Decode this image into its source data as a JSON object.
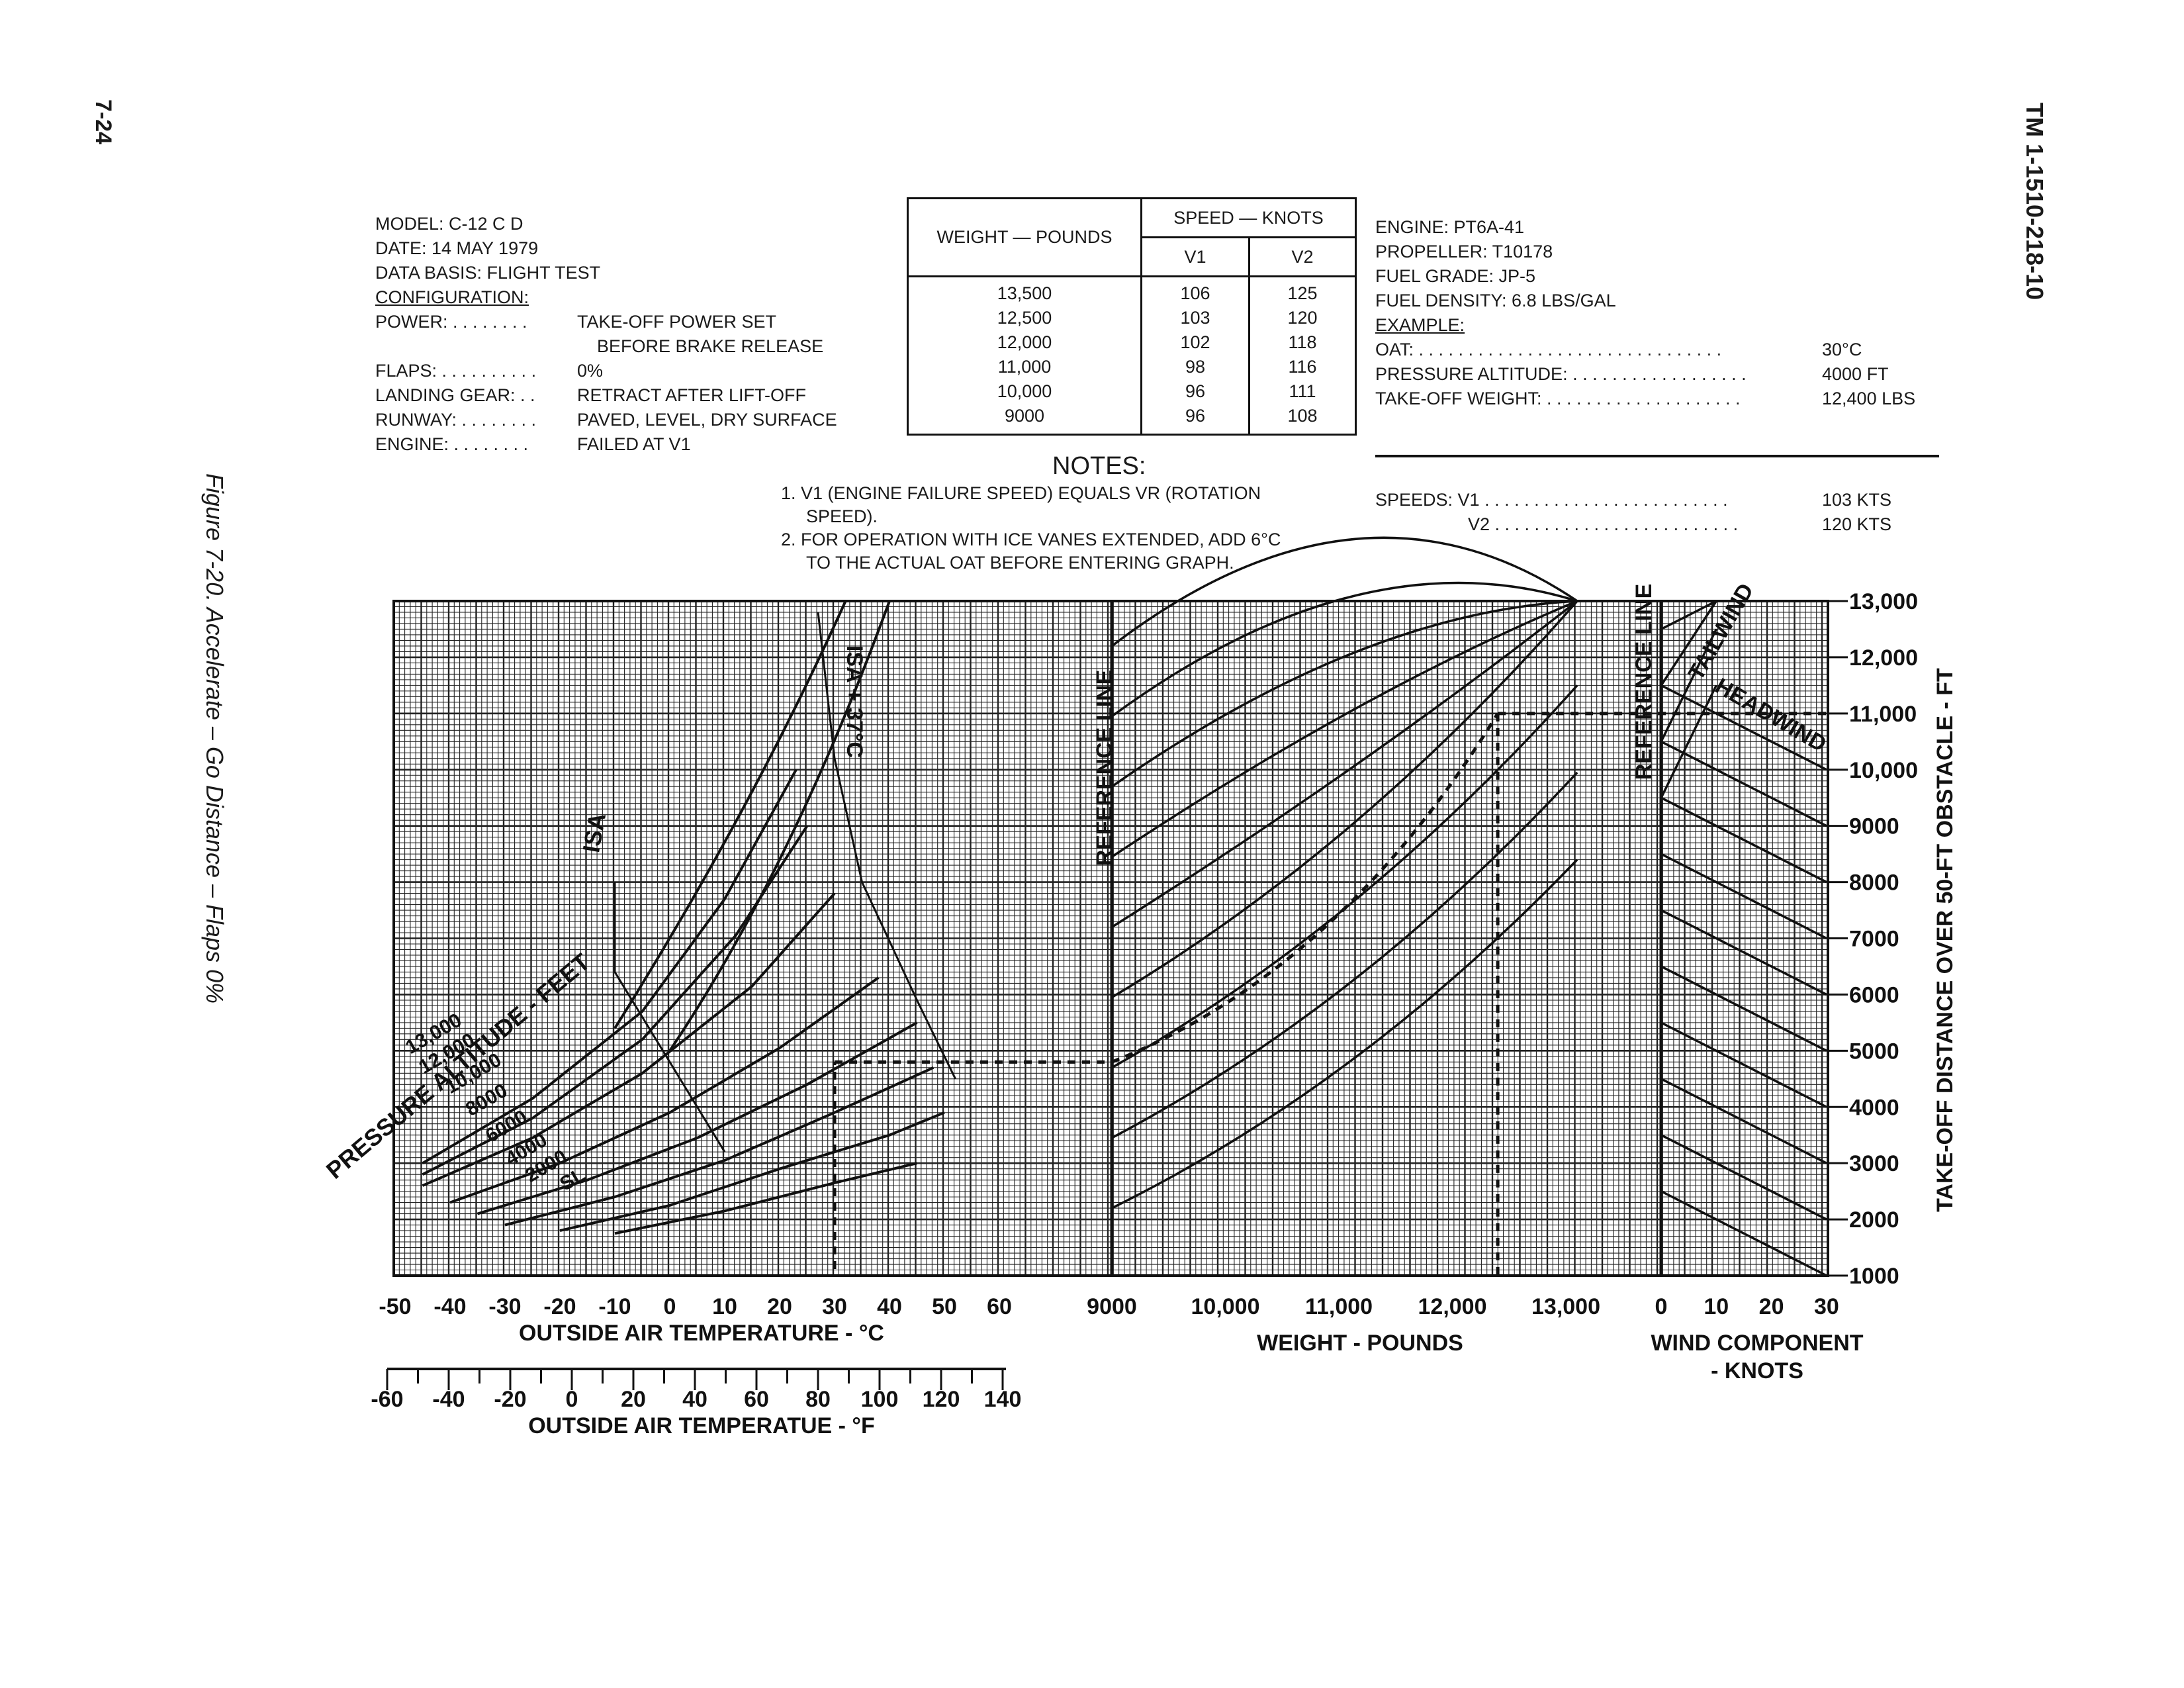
{
  "page": {
    "page_number": "7-24",
    "doc_id": "TM 1-1510-218-10",
    "figure_caption": "Figure 7-20. Accelerate – Go Distance – Flaps 0%"
  },
  "header_left": {
    "model": "MODEL: C-12 C D",
    "date": "DATE: 14 MAY 1979",
    "data_basis": "DATA BASIS: FLIGHT TEST",
    "configuration": "CONFIGURATION:",
    "rows": [
      {
        "key": "POWER: . . . . . . . .",
        "value": "TAKE-OFF POWER SET"
      },
      {
        "key": "",
        "value": "BEFORE BRAKE RELEASE"
      },
      {
        "key": "FLAPS: . . . . . . . . . .",
        "value": "0% "
      },
      {
        "key": "LANDING GEAR: . .",
        "value": "RETRACT AFTER LIFT-OFF"
      },
      {
        "key": "RUNWAY: . . . . . . . .",
        "value": "PAVED, LEVEL, DRY SURFACE"
      },
      {
        "key": "ENGINE: . . . . . . . .",
        "value": "FAILED AT V1"
      }
    ]
  },
  "speed_table": {
    "group_header": "SPEED — KNOTS",
    "weight_header": "WEIGHT — POUNDS",
    "v1_header": "V1",
    "v2_header": "V2",
    "rows": [
      {
        "weight": "13,500",
        "v1": "106",
        "v2": "125"
      },
      {
        "weight": "12,500",
        "v1": "103",
        "v2": "120"
      },
      {
        "weight": "12,000",
        "v1": "102",
        "v2": "118"
      },
      {
        "weight": "11,000",
        "v1": "98",
        "v2": "116"
      },
      {
        "weight": "10,000",
        "v1": "96",
        "v2": "111"
      },
      {
        "weight": "9000",
        "v1": "96",
        "v2": "108"
      }
    ]
  },
  "notes": {
    "title": "NOTES:",
    "note1a": "1. V1  (ENGINE FAILURE SPEED) EQUALS VR (ROTATION",
    "note1b": "SPEED).",
    "note2a": "2. FOR OPERATION WITH ICE VANES EXTENDED, ADD 6°C",
    "note2b": "TO THE ACTUAL OAT BEFORE ENTERING GRAPH."
  },
  "header_right": {
    "engine": "ENGINE: PT6A-41",
    "propeller": "PROPELLER: T10178",
    "fuel_grade": "FUEL GRADE: JP-5",
    "fuel_density": "FUEL DENSITY: 6.8 LBS/GAL",
    "example_title": "EXAMPLE:",
    "oat_label": "OAT: . . . . . . . . . . . . . . . . . . . . . . . . . . . . . . .",
    "oat_value": "30°C",
    "pa_label": "PRESSURE ALTITUDE: . . . . . . . . . . . . . . . . . .",
    "pa_value": "4000 FT",
    "tow_label": "TAKE-OFF WEIGHT: . . . . . . . . . . . . . . . . . . . .",
    "tow_value": "12,400 LBS",
    "speeds_label": "SPEEDS: V1 . . . . . . . . . . . . . . . . . . . . . . . . .",
    "v1_value": "103 KTS",
    "v2_label": "V2 . . . . . . . . . . . . . . . . . . . . . . . . .",
    "v2_value": "120 KTS"
  },
  "chart_data": {
    "type": "line",
    "title": "",
    "panels": {
      "temperature": {
        "x_ticks_c": [
          "-50",
          "-40",
          "-30",
          "-20",
          "-10",
          "0",
          "10",
          "20",
          "30",
          "40",
          "50",
          "60"
        ],
        "x_ticks_f": [
          "-60",
          "-40",
          "-20",
          "0",
          "20",
          "40",
          "60",
          "80",
          "100",
          "120",
          "140"
        ],
        "xlabel_c": "OUTSIDE AIR TEMPERATURE - °C",
        "xlabel_f": "OUTSIDE AIR TEMPERATUE - °F",
        "family_label": "PRESSURE ALTITUDE - FEET",
        "altitude_labels": [
          "13,000",
          "12,000",
          "10,000",
          "8000",
          "6000",
          "4000",
          "2000",
          "SL"
        ],
        "isa_label": "ISA",
        "isa37_label": "ISA + 37°C"
      },
      "weight": {
        "x_ticks": [
          "9000",
          "10,000",
          "11,000",
          "12,000",
          "13,000"
        ],
        "xlabel": "WEIGHT - POUNDS",
        "reference_label": "REFERENCE LINE"
      },
      "wind": {
        "x_ticks": [
          "0",
          "10",
          "20",
          "30"
        ],
        "xlabel_line1": "WIND COMPONENT",
        "xlabel_line2": "- KNOTS",
        "reference_label": "REFERENCE LINE",
        "tailwind_label": "TAILWIND",
        "headwind_label": "HEADWIND"
      }
    },
    "y_axis": {
      "label": "TAKE-OFF DISTANCE OVER 50-FT OBSTACLE - FT",
      "ticks": [
        "13,000",
        "12,000",
        "11,000",
        "10,000",
        "9000",
        "8000",
        "7000",
        "6000",
        "5000",
        "4000",
        "3000",
        "2000",
        "1000"
      ],
      "ylim": [
        1000,
        13000
      ]
    },
    "example_path": {
      "oat_c": 30,
      "pressure_altitude_ft": 4000,
      "weight_lbs": 12400,
      "result_distance_ft": 11000,
      "entry_distance_ft": 4800
    },
    "grid": true
  }
}
